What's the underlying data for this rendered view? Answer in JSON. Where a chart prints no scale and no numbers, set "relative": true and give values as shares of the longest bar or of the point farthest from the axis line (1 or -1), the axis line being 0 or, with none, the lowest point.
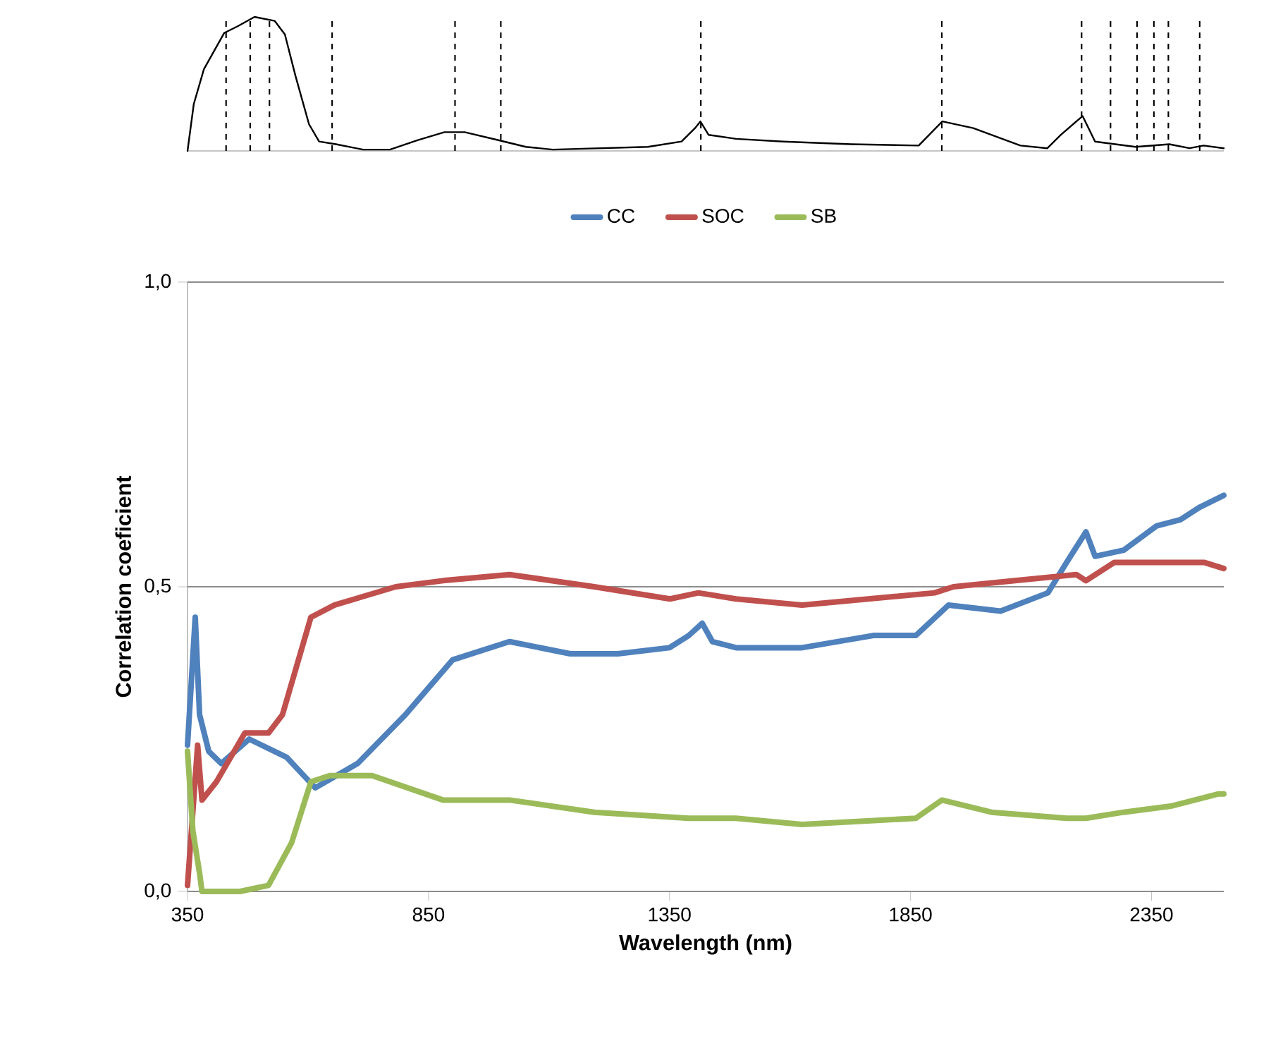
{
  "chart_data": [
    {
      "type": "line",
      "relative": true,
      "xlim": [
        350,
        2500
      ],
      "tick_labels": false,
      "x": [
        350,
        363,
        384,
        426,
        454,
        489,
        531,
        552,
        574,
        602,
        623,
        658,
        714,
        770,
        827,
        883,
        925,
        995,
        1052,
        1108,
        1305,
        1375,
        1403,
        1414,
        1431,
        1488,
        1586,
        1727,
        1867,
        1916,
        1980,
        2078,
        2134,
        2162,
        2207,
        2233,
        2317,
        2387,
        2429,
        2458,
        2500
      ],
      "series": [
        {
          "color": "#000000",
          "values": [
            0,
            0.35,
            0.61,
            0.88,
            0.93,
            1.0,
            0.97,
            0.87,
            0.56,
            0.2,
            0.07,
            0.05,
            0.01,
            0.01,
            0.08,
            0.14,
            0.14,
            0.08,
            0.03,
            0.01,
            0.03,
            0.07,
            0.17,
            0.22,
            0.12,
            0.09,
            0.07,
            0.05,
            0.04,
            0.22,
            0.17,
            0.04,
            0.02,
            0.12,
            0.26,
            0.07,
            0.03,
            0.05,
            0.02,
            0.04,
            0.02
          ]
        }
      ],
      "ref_lines": [
        {
          "axis": "x",
          "value": 430,
          "line_style": "dashed",
          "color": "#000000"
        },
        {
          "axis": "x",
          "value": 480,
          "line_style": "dashed",
          "color": "#000000"
        },
        {
          "axis": "x",
          "value": 520,
          "line_style": "dashed",
          "color": "#000000"
        },
        {
          "axis": "x",
          "value": 650,
          "line_style": "dashed",
          "color": "#000000"
        },
        {
          "axis": "x",
          "value": 905,
          "line_style": "dashed",
          "color": "#000000"
        },
        {
          "axis": "x",
          "value": 1000,
          "line_style": "dashed",
          "color": "#000000"
        },
        {
          "axis": "x",
          "value": 1415,
          "line_style": "dashed",
          "color": "#000000"
        },
        {
          "axis": "x",
          "value": 1915,
          "line_style": "dashed",
          "color": "#000000"
        },
        {
          "axis": "x",
          "value": 2205,
          "line_style": "dashed",
          "color": "#000000"
        },
        {
          "axis": "x",
          "value": 2265,
          "line_style": "dashed",
          "color": "#000000"
        },
        {
          "axis": "x",
          "value": 2320,
          "line_style": "dashed",
          "color": "#000000"
        },
        {
          "axis": "x",
          "value": 2355,
          "line_style": "dashed",
          "color": "#000000"
        },
        {
          "axis": "x",
          "value": 2385,
          "line_style": "dashed",
          "color": "#000000"
        },
        {
          "axis": "x",
          "value": 2450,
          "line_style": "dashed",
          "color": "#000000"
        }
      ]
    },
    {
      "type": "line",
      "xlabel": "Wavelength (nm)",
      "ylabel": "Correlation coeficient",
      "xlim": [
        350,
        2500
      ],
      "xticks": [
        350,
        850,
        1350,
        1850,
        2350
      ],
      "ylim": [
        0,
        1
      ],
      "yticks": [
        {
          "value": 0,
          "label": "0,0"
        },
        {
          "value": 0.5,
          "label": "0,5"
        },
        {
          "value": 1,
          "label": "1,0"
        }
      ],
      "grid": "y",
      "legend": "top",
      "series": [
        {
          "name": "CC",
          "color": "#4f81bd",
          "x": [
            350,
            366,
            375,
            394,
            420,
            478,
            556,
            615,
            703,
            802,
            900,
            1018,
            1144,
            1243,
            1350,
            1390,
            1418,
            1439,
            1488,
            1625,
            1773,
            1861,
            1929,
            2037,
            2135,
            2174,
            2214,
            2233,
            2292,
            2361,
            2410,
            2449,
            2500
          ],
          "values": [
            0.24,
            0.45,
            0.29,
            0.23,
            0.21,
            0.25,
            0.22,
            0.17,
            0.21,
            0.29,
            0.38,
            0.41,
            0.39,
            0.39,
            0.4,
            0.42,
            0.44,
            0.41,
            0.4,
            0.4,
            0.42,
            0.42,
            0.47,
            0.46,
            0.49,
            0.54,
            0.59,
            0.55,
            0.56,
            0.6,
            0.61,
            0.63,
            0.65
          ]
        },
        {
          "name": "SOC",
          "color": "#c0504d",
          "x": [
            350,
            371,
            380,
            410,
            469,
            518,
            547,
            606,
            655,
            782,
            880,
            1018,
            1194,
            1351,
            1410,
            1488,
            1625,
            1900,
            1939,
            2067,
            2194,
            2214,
            2273,
            2361,
            2459,
            2500
          ],
          "values": [
            0.01,
            0.24,
            0.15,
            0.18,
            0.26,
            0.26,
            0.29,
            0.45,
            0.47,
            0.5,
            0.51,
            0.52,
            0.5,
            0.48,
            0.49,
            0.48,
            0.47,
            0.49,
            0.5,
            0.51,
            0.52,
            0.51,
            0.54,
            0.54,
            0.54,
            0.53
          ]
        },
        {
          "name": "SB",
          "color": "#9bbb59",
          "x": [
            350,
            361,
            375,
            380,
            459,
            518,
            566,
            606,
            645,
            733,
            880,
            1018,
            1194,
            1390,
            1488,
            1625,
            1861,
            1915,
            2018,
            2174,
            2214,
            2292,
            2390,
            2488,
            2500
          ],
          "values": [
            0.23,
            0.1,
            0.03,
            0,
            0,
            0.01,
            0.08,
            0.18,
            0.19,
            0.19,
            0.15,
            0.15,
            0.13,
            0.12,
            0.12,
            0.11,
            0.12,
            0.15,
            0.13,
            0.12,
            0.12,
            0.13,
            0.14,
            0.16,
            0.16
          ]
        }
      ]
    }
  ]
}
